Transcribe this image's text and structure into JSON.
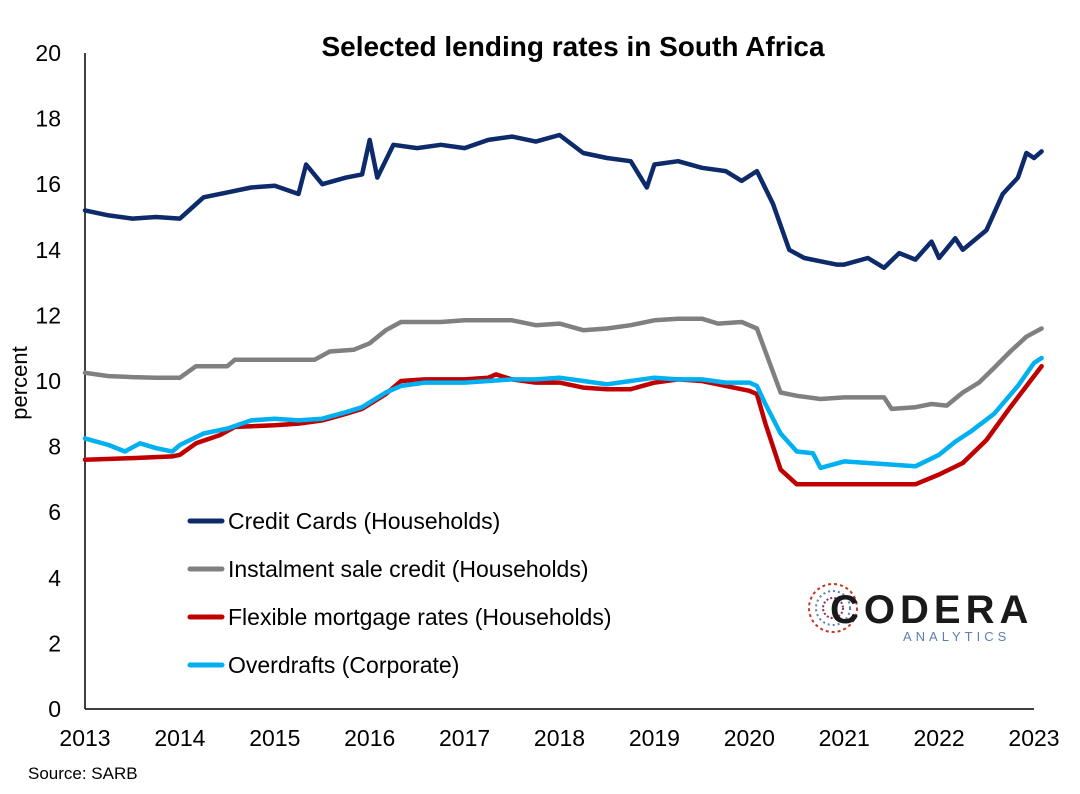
{
  "chart_data": {
    "type": "line",
    "title": "Selected lending rates in South Africa",
    "ylabel": "percent",
    "xlabel": "",
    "ylim": [
      0,
      20
    ],
    "xlim": [
      2013,
      2023
    ],
    "y_ticks": [
      "0",
      "2",
      "4",
      "6",
      "8",
      "10",
      "12",
      "14",
      "16",
      "18",
      "20"
    ],
    "x_ticks": [
      "2013",
      "2014",
      "2015",
      "2016",
      "2017",
      "2018",
      "2019",
      "2020",
      "2021",
      "2022",
      "2023"
    ],
    "grid": false,
    "legend_position": "bottom-left",
    "source": "Source: SARB",
    "series": [
      {
        "name": "Credit Cards (Households)",
        "color": "#0d2a6b",
        "points": [
          [
            2013.0,
            15.2
          ],
          [
            2013.25,
            15.05
          ],
          [
            2013.5,
            14.95
          ],
          [
            2013.75,
            15.0
          ],
          [
            2014.0,
            14.95
          ],
          [
            2014.25,
            15.6
          ],
          [
            2014.5,
            15.75
          ],
          [
            2014.75,
            15.9
          ],
          [
            2015.0,
            15.95
          ],
          [
            2015.25,
            15.7
          ],
          [
            2015.33,
            16.6
          ],
          [
            2015.5,
            16.0
          ],
          [
            2015.75,
            16.2
          ],
          [
            2015.92,
            16.3
          ],
          [
            2016.0,
            17.35
          ],
          [
            2016.08,
            16.2
          ],
          [
            2016.25,
            17.2
          ],
          [
            2016.5,
            17.1
          ],
          [
            2016.75,
            17.2
          ],
          [
            2017.0,
            17.1
          ],
          [
            2017.25,
            17.35
          ],
          [
            2017.5,
            17.45
          ],
          [
            2017.75,
            17.3
          ],
          [
            2018.0,
            17.5
          ],
          [
            2018.25,
            16.95
          ],
          [
            2018.5,
            16.8
          ],
          [
            2018.75,
            16.7
          ],
          [
            2018.92,
            15.9
          ],
          [
            2019.0,
            16.6
          ],
          [
            2019.25,
            16.7
          ],
          [
            2019.5,
            16.5
          ],
          [
            2019.75,
            16.4
          ],
          [
            2019.92,
            16.1
          ],
          [
            2020.08,
            16.4
          ],
          [
            2020.25,
            15.4
          ],
          [
            2020.42,
            14.0
          ],
          [
            2020.58,
            13.75
          ],
          [
            2020.75,
            13.65
          ],
          [
            2020.92,
            13.55
          ],
          [
            2021.0,
            13.55
          ],
          [
            2021.25,
            13.75
          ],
          [
            2021.42,
            13.45
          ],
          [
            2021.58,
            13.9
          ],
          [
            2021.75,
            13.7
          ],
          [
            2021.92,
            14.25
          ],
          [
            2022.0,
            13.75
          ],
          [
            2022.17,
            14.35
          ],
          [
            2022.25,
            14.0
          ],
          [
            2022.5,
            14.6
          ],
          [
            2022.67,
            15.7
          ],
          [
            2022.83,
            16.2
          ],
          [
            2022.92,
            16.95
          ],
          [
            2023.0,
            16.8
          ],
          [
            2023.08,
            17.0
          ]
        ]
      },
      {
        "name": "Instalment sale credit (Households)",
        "color": "#808080",
        "points": [
          [
            2013.0,
            10.25
          ],
          [
            2013.25,
            10.15
          ],
          [
            2013.5,
            10.12
          ],
          [
            2013.75,
            10.1
          ],
          [
            2014.0,
            10.1
          ],
          [
            2014.17,
            10.45
          ],
          [
            2014.5,
            10.45
          ],
          [
            2014.58,
            10.65
          ],
          [
            2014.75,
            10.65
          ],
          [
            2015.0,
            10.65
          ],
          [
            2015.42,
            10.65
          ],
          [
            2015.58,
            10.9
          ],
          [
            2015.83,
            10.95
          ],
          [
            2016.0,
            11.15
          ],
          [
            2016.17,
            11.55
          ],
          [
            2016.33,
            11.8
          ],
          [
            2016.75,
            11.8
          ],
          [
            2017.0,
            11.85
          ],
          [
            2017.5,
            11.85
          ],
          [
            2017.75,
            11.7
          ],
          [
            2018.0,
            11.75
          ],
          [
            2018.25,
            11.55
          ],
          [
            2018.5,
            11.6
          ],
          [
            2018.75,
            11.7
          ],
          [
            2019.0,
            11.85
          ],
          [
            2019.25,
            11.9
          ],
          [
            2019.5,
            11.9
          ],
          [
            2019.67,
            11.75
          ],
          [
            2019.92,
            11.8
          ],
          [
            2020.08,
            11.6
          ],
          [
            2020.17,
            10.9
          ],
          [
            2020.33,
            9.65
          ],
          [
            2020.5,
            9.55
          ],
          [
            2020.75,
            9.45
          ],
          [
            2021.0,
            9.5
          ],
          [
            2021.25,
            9.5
          ],
          [
            2021.42,
            9.5
          ],
          [
            2021.5,
            9.15
          ],
          [
            2021.75,
            9.2
          ],
          [
            2021.92,
            9.3
          ],
          [
            2022.08,
            9.25
          ],
          [
            2022.25,
            9.65
          ],
          [
            2022.42,
            9.95
          ],
          [
            2022.58,
            10.4
          ],
          [
            2022.75,
            10.9
          ],
          [
            2022.92,
            11.35
          ],
          [
            2023.08,
            11.6
          ]
        ]
      },
      {
        "name": "Flexible mortgage rates (Households)",
        "color": "#c00000",
        "points": [
          [
            2013.0,
            7.6
          ],
          [
            2013.5,
            7.65
          ],
          [
            2013.92,
            7.7
          ],
          [
            2014.0,
            7.75
          ],
          [
            2014.17,
            8.1
          ],
          [
            2014.42,
            8.35
          ],
          [
            2014.58,
            8.6
          ],
          [
            2015.0,
            8.65
          ],
          [
            2015.25,
            8.7
          ],
          [
            2015.5,
            8.8
          ],
          [
            2015.75,
            9.0
          ],
          [
            2015.92,
            9.15
          ],
          [
            2016.17,
            9.6
          ],
          [
            2016.33,
            10.0
          ],
          [
            2016.58,
            10.05
          ],
          [
            2017.0,
            10.05
          ],
          [
            2017.25,
            10.1
          ],
          [
            2017.33,
            10.2
          ],
          [
            2017.5,
            10.05
          ],
          [
            2017.75,
            9.95
          ],
          [
            2018.0,
            9.95
          ],
          [
            2018.25,
            9.8
          ],
          [
            2018.5,
            9.75
          ],
          [
            2018.75,
            9.75
          ],
          [
            2019.0,
            9.95
          ],
          [
            2019.25,
            10.05
          ],
          [
            2019.5,
            10.0
          ],
          [
            2019.75,
            9.85
          ],
          [
            2020.0,
            9.7
          ],
          [
            2020.08,
            9.6
          ],
          [
            2020.17,
            8.7
          ],
          [
            2020.33,
            7.3
          ],
          [
            2020.5,
            6.85
          ],
          [
            2021.0,
            6.85
          ],
          [
            2021.5,
            6.85
          ],
          [
            2021.75,
            6.85
          ],
          [
            2022.0,
            7.15
          ],
          [
            2022.25,
            7.5
          ],
          [
            2022.5,
            8.2
          ],
          [
            2022.75,
            9.2
          ],
          [
            2023.08,
            10.45
          ]
        ]
      },
      {
        "name": "Overdrafts (Corporate)",
        "color": "#00b0f0",
        "points": [
          [
            2013.0,
            8.25
          ],
          [
            2013.25,
            8.05
          ],
          [
            2013.42,
            7.85
          ],
          [
            2013.58,
            8.1
          ],
          [
            2013.75,
            7.95
          ],
          [
            2013.92,
            7.85
          ],
          [
            2014.0,
            8.05
          ],
          [
            2014.25,
            8.4
          ],
          [
            2014.5,
            8.55
          ],
          [
            2014.75,
            8.8
          ],
          [
            2015.0,
            8.85
          ],
          [
            2015.25,
            8.8
          ],
          [
            2015.5,
            8.85
          ],
          [
            2015.75,
            9.05
          ],
          [
            2015.92,
            9.2
          ],
          [
            2016.17,
            9.65
          ],
          [
            2016.33,
            9.85
          ],
          [
            2016.58,
            9.95
          ],
          [
            2016.83,
            9.95
          ],
          [
            2017.0,
            9.95
          ],
          [
            2017.25,
            10.0
          ],
          [
            2017.5,
            10.05
          ],
          [
            2017.75,
            10.05
          ],
          [
            2018.0,
            10.1
          ],
          [
            2018.25,
            10.0
          ],
          [
            2018.5,
            9.9
          ],
          [
            2018.75,
            10.0
          ],
          [
            2019.0,
            10.1
          ],
          [
            2019.25,
            10.05
          ],
          [
            2019.5,
            10.05
          ],
          [
            2019.75,
            9.95
          ],
          [
            2020.0,
            9.95
          ],
          [
            2020.08,
            9.85
          ],
          [
            2020.17,
            9.3
          ],
          [
            2020.33,
            8.4
          ],
          [
            2020.5,
            7.85
          ],
          [
            2020.67,
            7.8
          ],
          [
            2020.75,
            7.35
          ],
          [
            2021.0,
            7.55
          ],
          [
            2021.25,
            7.5
          ],
          [
            2021.5,
            7.45
          ],
          [
            2021.75,
            7.4
          ],
          [
            2022.0,
            7.75
          ],
          [
            2022.17,
            8.15
          ],
          [
            2022.33,
            8.45
          ],
          [
            2022.58,
            9.0
          ],
          [
            2022.83,
            9.85
          ],
          [
            2023.0,
            10.55
          ],
          [
            2023.08,
            10.7
          ]
        ]
      }
    ]
  },
  "logo": {
    "word": "CODERA",
    "sub": "ANALYTICS"
  }
}
